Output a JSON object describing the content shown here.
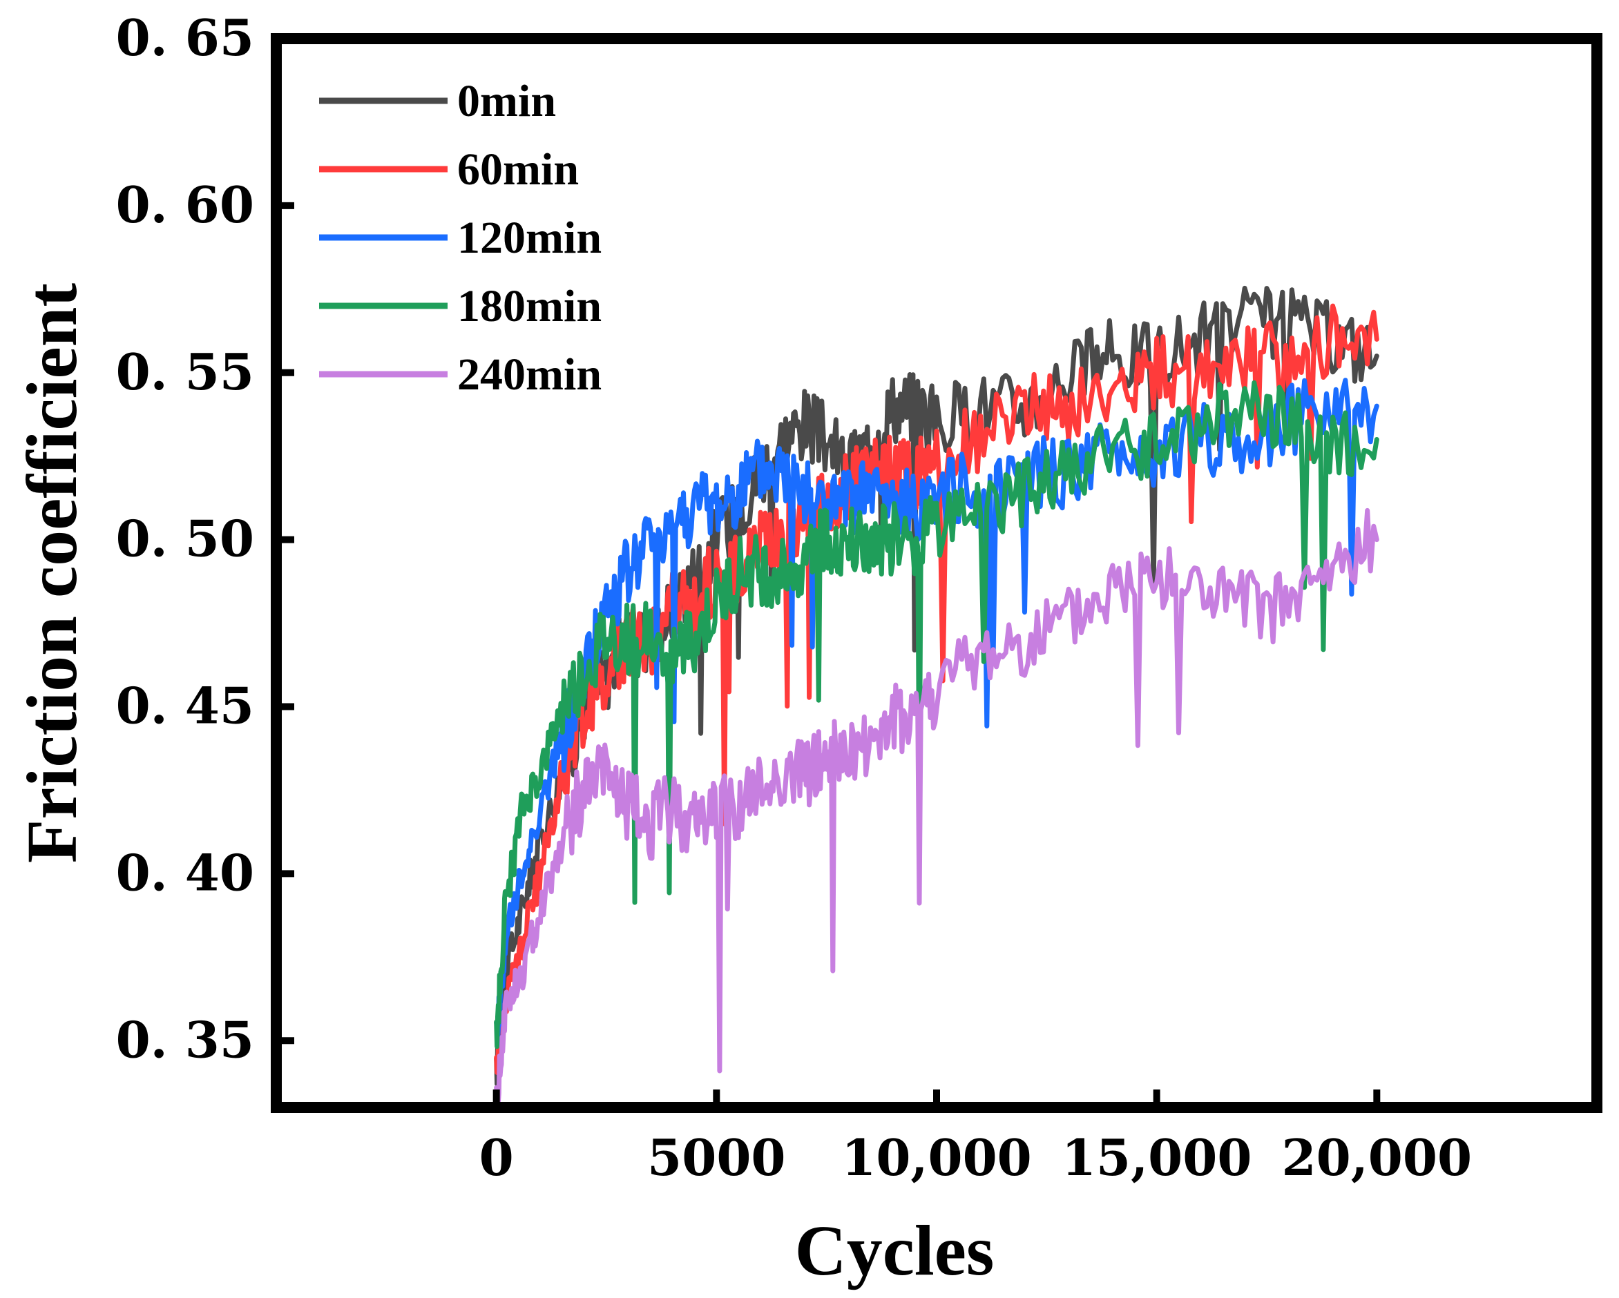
{
  "chart_data": {
    "type": "line",
    "title": "",
    "xlabel": "Cycles",
    "ylabel": "Friction coefficient",
    "xlim": [
      -5000,
      25000
    ],
    "ylim": [
      0.33,
      0.65
    ],
    "xticks": [
      0,
      5000,
      10000,
      15000,
      20000
    ],
    "xtick_labels": [
      "0",
      "5000",
      "10,000",
      "15,000",
      "20,000"
    ],
    "yticks": [
      0.35,
      0.4,
      0.45,
      0.5,
      0.55,
      0.6,
      0.65
    ],
    "ytick_labels": [
      "0. 35",
      "0. 40",
      "0. 45",
      "0. 50",
      "0. 55",
      "0. 60",
      "0. 65"
    ],
    "grid": false,
    "legend_position": "top-left",
    "series": [
      {
        "name": "0min",
        "color": "#4a4a4a",
        "x": [
          0,
          200,
          600,
          1000,
          1500,
          2000,
          2500,
          3000,
          3500,
          4000,
          4500,
          5000,
          5500,
          6000,
          6500,
          7000,
          7500,
          8000,
          8500,
          9000,
          9500,
          10000,
          11000,
          12000,
          13000,
          14000,
          15000,
          16000,
          17000,
          18000,
          19000,
          20000
        ],
        "y": [
          0.34,
          0.37,
          0.39,
          0.41,
          0.43,
          0.45,
          0.46,
          0.47,
          0.47,
          0.48,
          0.49,
          0.5,
          0.51,
          0.52,
          0.53,
          0.535,
          0.53,
          0.52,
          0.53,
          0.54,
          0.54,
          0.535,
          0.54,
          0.54,
          0.55,
          0.555,
          0.555,
          0.56,
          0.565,
          0.565,
          0.56,
          0.555
        ]
      },
      {
        "name": "60min",
        "color": "#ff3b3b",
        "x": [
          0,
          200,
          600,
          1000,
          1500,
          2000,
          2500,
          3000,
          3500,
          4000,
          4500,
          5000,
          5500,
          6000,
          6500,
          7000,
          7500,
          8000,
          8500,
          9000,
          9500,
          10000,
          11000,
          12000,
          13000,
          14000,
          15000,
          16000,
          17000,
          18000,
          19000,
          20000
        ],
        "y": [
          0.34,
          0.36,
          0.38,
          0.4,
          0.43,
          0.45,
          0.46,
          0.47,
          0.47,
          0.48,
          0.48,
          0.49,
          0.49,
          0.5,
          0.5,
          0.505,
          0.51,
          0.515,
          0.52,
          0.52,
          0.52,
          0.525,
          0.53,
          0.54,
          0.54,
          0.545,
          0.55,
          0.55,
          0.555,
          0.555,
          0.56,
          0.56
        ]
      },
      {
        "name": "120min",
        "color": "#1a6dff",
        "x": [
          0,
          200,
          600,
          1000,
          1500,
          2000,
          2500,
          3000,
          3500,
          4000,
          4500,
          5000,
          5500,
          6000,
          6500,
          7000,
          7500,
          8000,
          8500,
          9000,
          9500,
          10000,
          11000,
          12000,
          13000,
          14000,
          15000,
          16000,
          17000,
          18000,
          19000,
          20000
        ],
        "y": [
          0.35,
          0.38,
          0.4,
          0.42,
          0.44,
          0.46,
          0.48,
          0.49,
          0.5,
          0.505,
          0.51,
          0.51,
          0.515,
          0.52,
          0.52,
          0.515,
          0.51,
          0.51,
          0.515,
          0.51,
          0.51,
          0.515,
          0.515,
          0.52,
          0.52,
          0.525,
          0.525,
          0.53,
          0.53,
          0.535,
          0.54,
          0.54
        ]
      },
      {
        "name": "180min",
        "color": "#1f9e5a",
        "x": [
          0,
          200,
          600,
          1000,
          1500,
          2000,
          2500,
          3000,
          3500,
          4000,
          4500,
          5000,
          5500,
          6000,
          6500,
          7000,
          7500,
          8000,
          8500,
          9000,
          9500,
          10000,
          11000,
          12000,
          13000,
          14000,
          15000,
          16000,
          17000,
          18000,
          19000,
          20000
        ],
        "y": [
          0.35,
          0.39,
          0.42,
          0.43,
          0.45,
          0.46,
          0.47,
          0.47,
          0.47,
          0.465,
          0.47,
          0.48,
          0.49,
          0.49,
          0.49,
          0.495,
          0.5,
          0.5,
          0.5,
          0.5,
          0.5,
          0.505,
          0.51,
          0.515,
          0.52,
          0.525,
          0.53,
          0.535,
          0.54,
          0.535,
          0.53,
          0.53
        ]
      },
      {
        "name": "240min",
        "color": "#c77fe0",
        "x": [
          0,
          200,
          600,
          1000,
          1500,
          2000,
          2500,
          3000,
          3500,
          4000,
          4500,
          5000,
          5500,
          6000,
          6500,
          7000,
          7500,
          8000,
          8500,
          9000,
          9500,
          10000,
          11000,
          12000,
          13000,
          14000,
          15000,
          16000,
          17000,
          18000,
          19000,
          20000
        ],
        "y": [
          0.33,
          0.36,
          0.37,
          0.39,
          0.41,
          0.425,
          0.43,
          0.42,
          0.415,
          0.42,
          0.415,
          0.42,
          0.42,
          0.425,
          0.43,
          0.43,
          0.435,
          0.435,
          0.44,
          0.445,
          0.45,
          0.455,
          0.465,
          0.47,
          0.475,
          0.485,
          0.49,
          0.485,
          0.48,
          0.48,
          0.49,
          0.5
        ]
      }
    ]
  }
}
